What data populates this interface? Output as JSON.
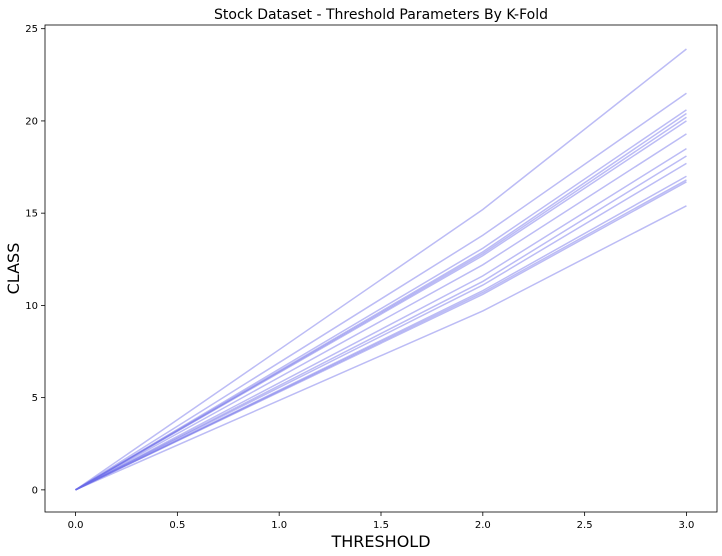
{
  "chart_data": {
    "type": "line",
    "title": "Stock Dataset - Threshold Parameters By K-Fold",
    "xlabel": "THRESHOLD",
    "ylabel": "CLASS",
    "xlim": [
      -0.15,
      3.15
    ],
    "ylim": [
      -1.2,
      25.2
    ],
    "xticks": [
      0.0,
      0.5,
      1.0,
      1.5,
      2.0,
      2.5,
      3.0
    ],
    "xtick_labels": [
      "0.0",
      "0.5",
      "1.0",
      "1.5",
      "2.0",
      "2.5",
      "3.0"
    ],
    "yticks": [
      0,
      5,
      10,
      15,
      20,
      25
    ],
    "ytick_labels": [
      "0",
      "5",
      "10",
      "15",
      "20",
      "25"
    ],
    "grid": false,
    "legend": "none",
    "color": "#6b6be8",
    "x": [
      0.0,
      2.0,
      3.0
    ],
    "series": [
      {
        "values": [
          0,
          15.2,
          23.9
        ]
      },
      {
        "values": [
          0,
          13.8,
          21.5
        ]
      },
      {
        "values": [
          0,
          13.1,
          20.6
        ]
      },
      {
        "values": [
          0,
          12.9,
          20.4
        ]
      },
      {
        "values": [
          0,
          12.8,
          20.2
        ]
      },
      {
        "values": [
          0,
          12.7,
          20.0
        ]
      },
      {
        "values": [
          0,
          12.2,
          19.3
        ]
      },
      {
        "values": [
          0,
          11.6,
          18.5
        ]
      },
      {
        "values": [
          0,
          11.3,
          18.1
        ]
      },
      {
        "values": [
          0,
          11.1,
          17.7
        ]
      },
      {
        "values": [
          0,
          10.8,
          17.0
        ]
      },
      {
        "values": [
          0,
          10.7,
          16.8
        ]
      },
      {
        "values": [
          0,
          10.6,
          16.7
        ]
      },
      {
        "values": [
          0,
          9.7,
          15.4
        ]
      }
    ]
  }
}
